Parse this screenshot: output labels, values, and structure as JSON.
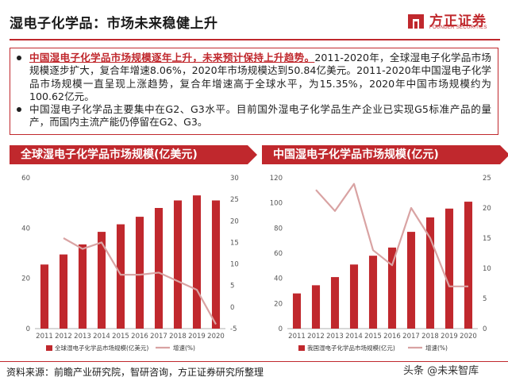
{
  "header": {
    "title": "湿电子化学品：市场未来稳健上升",
    "logo": {
      "cn": "方正证券",
      "en": "FOUNDER SECURITIES",
      "brand_color": "#c0282d"
    }
  },
  "summary": [
    {
      "highlight": "中国湿电子化学品市场规模逐年上升，未来预计保持上升趋势。",
      "text": "2011-2020年，全球湿电子化学品市场规模逐步扩大，复合年增速8.06%，2020年市场规模达到50.84亿美元。2011-2020年中国湿电子化学品市场规模一直呈现上涨趋势，复合年增速高于全球水平，为15.35%，2020年中国市场规模约为100.62亿元。"
    },
    {
      "highlight": "",
      "text": "中国湿电子化学品主要集中在G2、G3水平。目前国外湿电子化学品生产企业已实现G5标准产品的量产，而国内主流产能仍停留在G2、G3。"
    }
  ],
  "chart_data": [
    {
      "type": "bar",
      "title": "全球湿电子化学品市场规模(亿美元)",
      "categories": [
        "2011",
        "2012",
        "2013",
        "2014",
        "2015",
        "2016",
        "2017",
        "2018",
        "2019",
        "2020"
      ],
      "y_left_ticks": [
        "0",
        "20",
        "40",
        "60"
      ],
      "y_right_ticks": [
        "-5",
        "0",
        "5",
        "10",
        "15",
        "20",
        "25",
        "30"
      ],
      "ylim_left": [
        0,
        60
      ],
      "ylim_right": [
        -5,
        30
      ],
      "series": [
        {
          "name": "全球湿电子化学品市场规模(亿美元)",
          "type": "bar",
          "axis": "left",
          "color": "#c0282d",
          "values": [
            25.5,
            29.5,
            33.5,
            38.5,
            41.5,
            44.5,
            48,
            51,
            53,
            51
          ]
        },
        {
          "name": "增速(%)",
          "type": "line",
          "axis": "right",
          "color": "#d9a3a3",
          "values": [
            null,
            16,
            13.5,
            15,
            7.5,
            7.5,
            8,
            6,
            4,
            -4
          ]
        }
      ],
      "legend": [
        "全球湿电子化学品市场规模(亿美元)",
        "增速(%)"
      ]
    },
    {
      "type": "bar",
      "title": "中国湿电子化学品市场规模(亿元)",
      "categories": [
        "2011",
        "2012",
        "2013",
        "2014",
        "2015",
        "2016",
        "2017",
        "2018",
        "2019",
        "2020"
      ],
      "y_left_ticks": [
        "0",
        "20",
        "40",
        "60",
        "80",
        "100",
        "120"
      ],
      "y_right_ticks": [
        "0",
        "5",
        "10",
        "15",
        "20",
        "25"
      ],
      "ylim_left": [
        0,
        120
      ],
      "ylim_right": [
        0,
        25
      ],
      "series": [
        {
          "name": "我国湿电子化学品市场规模(亿元)",
          "type": "bar",
          "axis": "left",
          "color": "#c0282d",
          "values": [
            28,
            34.5,
            41,
            51,
            58,
            64.5,
            77,
            88.5,
            95.5,
            101
          ]
        },
        {
          "name": "增速(%)",
          "type": "line",
          "axis": "right",
          "color": "#d9a3a3",
          "values": [
            null,
            23,
            19.5,
            24,
            13,
            10.5,
            20,
            15,
            7,
            7
          ]
        }
      ],
      "legend": [
        "我国湿电子化学品市场规模(亿元)",
        "增速(%)"
      ]
    }
  ],
  "footer": {
    "source": "资料来源：前瞻产业研究院，智研咨询，方正证券研究所整理",
    "watermark": "头条 @未来智库"
  }
}
